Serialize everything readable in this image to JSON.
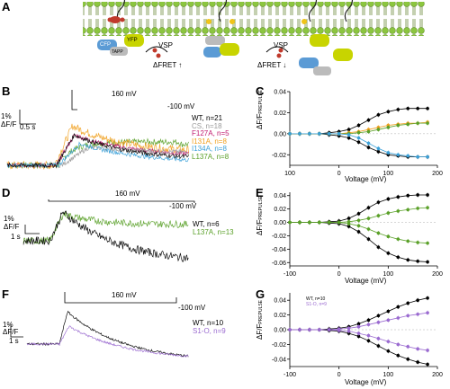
{
  "panel_labels": [
    "A",
    "B",
    "C",
    "D",
    "E",
    "F",
    "G"
  ],
  "panelA": {
    "vsp_left": "VSP",
    "vsp_right": "VSP",
    "fret_up": "ΔFRET ↑",
    "fret_down": "ΔFRET ↓",
    "cfp": "CFP",
    "yfp": "YFP",
    "tapp": "TAPP"
  },
  "panelB": {
    "voltage_top": "160 mV",
    "voltage_hold": "-100 mV",
    "scale_y": "1%",
    "scale_unit": "ΔF/F",
    "scale_x": "0.5 s",
    "legend": [
      {
        "text": "WT, n=21",
        "color": "#000000"
      },
      {
        "text": "CS, n=18",
        "color": "#9a9a9a"
      },
      {
        "text": "F127A, n=5",
        "color": "#c0186e"
      },
      {
        "text": "I131A, n=8",
        "color": "#f0a020"
      },
      {
        "text": "I134A, n=8",
        "color": "#3aa0d8"
      },
      {
        "text": "L137A, n=8",
        "color": "#5aa028"
      }
    ]
  },
  "panelD": {
    "voltage_top": "160 mV",
    "voltage_hold": "-100 mV",
    "scale_y": "1%",
    "scale_unit": "ΔF/F",
    "scale_x": "1 s",
    "legend": [
      {
        "text": "WT, n=6",
        "color": "#000000"
      },
      {
        "text": "L137A, n=13",
        "color": "#5aa028"
      }
    ]
  },
  "panelF": {
    "voltage_top": "160 mV",
    "voltage_hold": "-100 mV",
    "scale_y": "1%",
    "scale_unit": "ΔF/F",
    "scale_x": "1 s",
    "legend": [
      {
        "text": "WT, n=10",
        "color": "#000000"
      },
      {
        "text": "S1-O, n=9",
        "color": "#9a6ad0"
      }
    ]
  },
  "panelC": {
    "ylabel": "ΔF/F",
    "ylabel_sub": "PREPULSE",
    "xlabel": "Voltage (mV)",
    "yticks": [
      "0.04",
      "0.02",
      "0.00",
      "-0.02"
    ],
    "xticks": [
      "100",
      "0",
      "100",
      "200"
    ]
  },
  "panelE": {
    "ylabel": "ΔF/F",
    "ylabel_sub": "PREPULSE",
    "xlabel": "Voltage (mV)",
    "yticks": [
      "0.04",
      "0.02",
      "0.00",
      "-0.02",
      "-0.04",
      "-0.06"
    ],
    "xticks": [
      "-100",
      "0",
      "100",
      "200"
    ]
  },
  "panelG": {
    "ylabel": "ΔF/F",
    "ylabel_sub": "PREPULSE",
    "xlabel": "Voltage (mV)",
    "yticks": [
      "0.04",
      "0.02",
      "0.00",
      "-0.02",
      "-0.04"
    ],
    "xticks": [
      "-100",
      "0",
      "100",
      "200"
    ],
    "legend": [
      "WT, n=10",
      "S1-O, n=9"
    ]
  },
  "chart_data": [
    {
      "type": "scatter",
      "panel": "C",
      "xlabel": "Voltage (mV)",
      "ylabel": "ΔF/F PREPULSE",
      "xlim": [
        -100,
        200
      ],
      "ylim": [
        -0.03,
        0.04
      ],
      "x": [
        -100,
        -80,
        -60,
        -40,
        -20,
        0,
        20,
        40,
        60,
        80,
        100,
        120,
        140,
        160,
        180
      ],
      "series": [
        {
          "color": "#000000",
          "values": [
            0,
            0,
            0,
            0,
            0.001,
            0.002,
            0.004,
            0.008,
            0.013,
            0.018,
            0.021,
            0.023,
            0.024,
            0.024,
            0.024
          ]
        },
        {
          "color": "#000000",
          "values": [
            0,
            0,
            0,
            0,
            -0.001,
            -0.002,
            -0.004,
            -0.008,
            -0.013,
            -0.017,
            -0.02,
            -0.021,
            -0.022,
            -0.022,
            -0.022
          ]
        },
        {
          "color": "#f0a020",
          "values": [
            0,
            0,
            0,
            0,
            0,
            0,
            0.001,
            0.002,
            0.004,
            0.006,
            0.008,
            0.009,
            0.01,
            0.01,
            0.011
          ]
        },
        {
          "color": "#5aa028",
          "values": [
            0,
            0,
            0,
            0,
            0,
            0,
            0,
            0.001,
            0.002,
            0.004,
            0.006,
            0.008,
            0.009,
            0.01,
            0.01
          ]
        },
        {
          "color": "#3aa0d8",
          "values": [
            0,
            0,
            0,
            0,
            0,
            0,
            -0.001,
            -0.004,
            -0.009,
            -0.014,
            -0.018,
            -0.02,
            -0.021,
            -0.022,
            -0.022
          ]
        }
      ]
    },
    {
      "type": "scatter",
      "panel": "E",
      "xlabel": "Voltage (mV)",
      "ylabel": "ΔF/F PREPULSE",
      "xlim": [
        -100,
        200
      ],
      "ylim": [
        -0.065,
        0.045
      ],
      "x": [
        -100,
        -80,
        -60,
        -40,
        -20,
        0,
        20,
        40,
        60,
        80,
        100,
        120,
        140,
        160,
        180
      ],
      "series": [
        {
          "color": "#000000",
          "values": [
            0,
            0,
            0,
            0,
            0.001,
            0.002,
            0.006,
            0.013,
            0.022,
            0.03,
            0.035,
            0.038,
            0.04,
            0.041,
            0.041
          ]
        },
        {
          "color": "#000000",
          "values": [
            0,
            0,
            0,
            0,
            -0.001,
            -0.002,
            -0.006,
            -0.014,
            -0.025,
            -0.037,
            -0.046,
            -0.052,
            -0.056,
            -0.058,
            -0.059
          ]
        },
        {
          "color": "#5aa028",
          "values": [
            0,
            0,
            0,
            0,
            0,
            0,
            0.001,
            0.003,
            0.006,
            0.01,
            0.014,
            0.017,
            0.019,
            0.021,
            0.022
          ]
        },
        {
          "color": "#5aa028",
          "values": [
            0,
            0,
            0,
            0,
            0,
            0,
            -0.002,
            -0.005,
            -0.01,
            -0.016,
            -0.021,
            -0.025,
            -0.028,
            -0.03,
            -0.031
          ]
        }
      ]
    },
    {
      "type": "scatter",
      "panel": "G",
      "xlabel": "Voltage (mV)",
      "ylabel": "ΔF/F PREPULSE",
      "xlim": [
        -100,
        200
      ],
      "ylim": [
        -0.05,
        0.05
      ],
      "x": [
        -100,
        -80,
        -60,
        -40,
        -20,
        0,
        20,
        40,
        60,
        80,
        100,
        120,
        140,
        160,
        180
      ],
      "series": [
        {
          "name": "WT, n=10",
          "color": "#000000",
          "values": [
            0,
            0,
            0,
            0,
            0.001,
            0.002,
            0.004,
            0.008,
            0.013,
            0.019,
            0.025,
            0.031,
            0.036,
            0.04,
            0.043
          ]
        },
        {
          "name": "WT, n=10",
          "color": "#000000",
          "values": [
            0,
            0,
            0,
            0,
            -0.001,
            -0.002,
            -0.005,
            -0.009,
            -0.015,
            -0.022,
            -0.029,
            -0.035,
            -0.04,
            -0.044,
            -0.047
          ]
        },
        {
          "name": "S1-O, n=9",
          "color": "#9a6ad0",
          "values": [
            0,
            0,
            0,
            0,
            0,
            0.001,
            0.002,
            0.004,
            0.007,
            0.01,
            0.013,
            0.016,
            0.019,
            0.021,
            0.023
          ]
        },
        {
          "name": "S1-O, n=9",
          "color": "#9a6ad0",
          "values": [
            0,
            0,
            0,
            0,
            0,
            -0.001,
            -0.002,
            -0.005,
            -0.008,
            -0.012,
            -0.016,
            -0.02,
            -0.023,
            -0.026,
            -0.028
          ]
        }
      ]
    }
  ]
}
